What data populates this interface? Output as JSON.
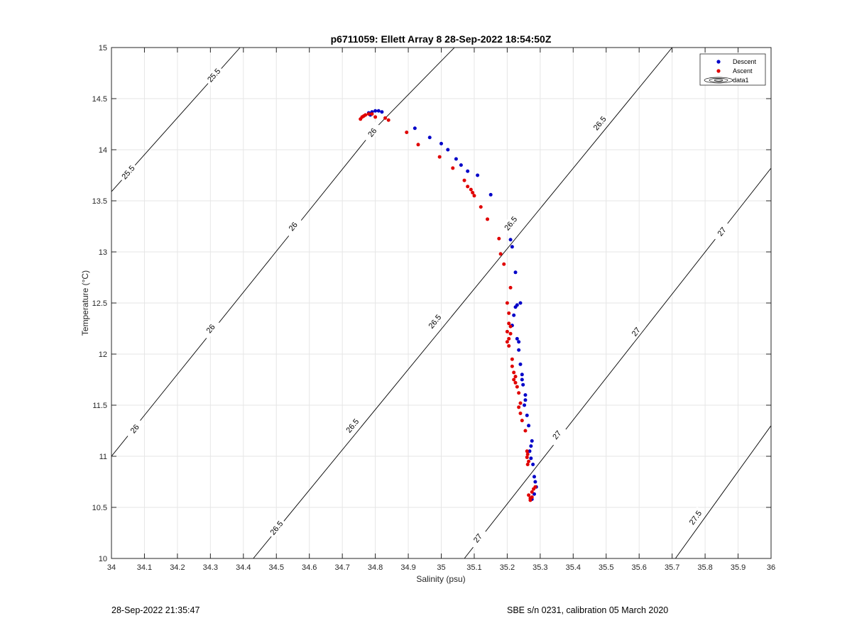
{
  "chart_data": {
    "type": "scatter",
    "title": "p6711059: Ellett Array 8 28-Sep-2022 18:54:50Z",
    "xlabel": "Salinity (psu)",
    "ylabel": "Temperature (°C)",
    "xlim": [
      34,
      36
    ],
    "ylim": [
      10,
      15
    ],
    "xticks": [
      "34",
      "34.1",
      "34.2",
      "34.3",
      "34.4",
      "34.5",
      "34.6",
      "34.7",
      "34.8",
      "34.9",
      "35",
      "35.1",
      "35.2",
      "35.3",
      "35.4",
      "35.5",
      "35.6",
      "35.7",
      "35.8",
      "35.9",
      "36"
    ],
    "yticks": [
      "10",
      "10.5",
      "11",
      "11.5",
      "12",
      "12.5",
      "13",
      "13.5",
      "14",
      "14.5",
      "15"
    ],
    "grid": true,
    "legend_position": "top-right",
    "legend": [
      "Descent",
      "Ascent",
      "data1"
    ],
    "colors": {
      "descent": "#0000c8",
      "ascent": "#e00000",
      "contour": "#000000",
      "grid": "#e6e6e6"
    },
    "contours": [
      {
        "level": "25.5",
        "segments": [
          [
            [
              34,
              13.59
            ],
            [
              34.39,
              15
            ]
          ]
        ],
        "labels": [
          {
            "x": 34.05,
            "y": 13.78
          },
          {
            "x": 34.31,
            "y": 14.73
          }
        ]
      },
      {
        "level": "26",
        "segments": [
          [
            [
              34,
              11.0
            ],
            [
              34.78,
              14.13
            ]
          ],
          [
            [
              34.8,
              14.21
            ],
            [
              35.04,
              15
            ]
          ]
        ],
        "labels": [
          {
            "x": 34.07,
            "y": 11.27
          },
          {
            "x": 34.3,
            "y": 12.25
          },
          {
            "x": 34.55,
            "y": 13.25
          },
          {
            "x": 34.79,
            "y": 14.17
          }
        ]
      },
      {
        "level": "26.5",
        "segments": [
          [
            [
              34.43,
              10
            ],
            [
              35.7,
              15
            ]
          ]
        ],
        "labels": [
          {
            "x": 34.5,
            "y": 10.3
          },
          {
            "x": 34.73,
            "y": 11.3
          },
          {
            "x": 34.98,
            "y": 12.32
          },
          {
            "x": 35.21,
            "y": 13.28
          },
          {
            "x": 35.48,
            "y": 14.26
          }
        ]
      },
      {
        "level": "27",
        "segments": [
          [
            [
              35.07,
              10
            ],
            [
              36,
              13.82
            ]
          ]
        ],
        "labels": [
          {
            "x": 35.11,
            "y": 10.2
          },
          {
            "x": 35.35,
            "y": 11.21
          },
          {
            "x": 35.59,
            "y": 12.22
          },
          {
            "x": 35.85,
            "y": 13.2
          }
        ]
      },
      {
        "level": "27.5",
        "segments": [
          [
            [
              35.71,
              10
            ],
            [
              36,
              11.3
            ]
          ]
        ],
        "labels": [
          {
            "x": 35.77,
            "y": 10.4
          }
        ]
      }
    ],
    "series": [
      {
        "name": "Descent",
        "points": [
          [
            34.78,
            14.36
          ],
          [
            34.79,
            14.37
          ],
          [
            34.8,
            14.38
          ],
          [
            34.81,
            14.38
          ],
          [
            34.82,
            14.37
          ],
          [
            34.785,
            14.34
          ],
          [
            34.92,
            14.21
          ],
          [
            34.965,
            14.12
          ],
          [
            35.0,
            14.06
          ],
          [
            35.02,
            14.0
          ],
          [
            35.045,
            13.91
          ],
          [
            35.06,
            13.85
          ],
          [
            35.08,
            13.79
          ],
          [
            35.11,
            13.75
          ],
          [
            35.15,
            13.56
          ],
          [
            35.21,
            13.12
          ],
          [
            35.215,
            13.05
          ],
          [
            35.225,
            12.8
          ],
          [
            35.23,
            12.48
          ],
          [
            35.225,
            12.46
          ],
          [
            35.24,
            12.5
          ],
          [
            35.22,
            12.38
          ],
          [
            35.215,
            12.28
          ],
          [
            35.23,
            12.15
          ],
          [
            35.235,
            12.12
          ],
          [
            35.235,
            12.04
          ],
          [
            35.24,
            11.9
          ],
          [
            35.245,
            11.8
          ],
          [
            35.245,
            11.75
          ],
          [
            35.248,
            11.7
          ],
          [
            35.255,
            11.6
          ],
          [
            35.255,
            11.55
          ],
          [
            35.252,
            11.5
          ],
          [
            35.26,
            11.4
          ],
          [
            35.265,
            11.3
          ],
          [
            35.275,
            11.15
          ],
          [
            35.272,
            11.1
          ],
          [
            35.268,
            11.05
          ],
          [
            35.272,
            10.98
          ],
          [
            35.278,
            10.92
          ],
          [
            35.282,
            10.8
          ],
          [
            35.285,
            10.75
          ],
          [
            35.288,
            10.7
          ],
          [
            35.282,
            10.63
          ],
          [
            35.275,
            10.58
          ]
        ]
      },
      {
        "name": "Ascent",
        "points": [
          [
            34.755,
            14.3
          ],
          [
            34.76,
            14.32
          ],
          [
            34.765,
            14.33
          ],
          [
            34.77,
            14.34
          ],
          [
            34.78,
            14.35
          ],
          [
            34.79,
            14.35
          ],
          [
            34.8,
            14.32
          ],
          [
            34.83,
            14.31
          ],
          [
            34.84,
            14.29
          ],
          [
            34.895,
            14.17
          ],
          [
            34.93,
            14.05
          ],
          [
            34.995,
            13.93
          ],
          [
            35.035,
            13.82
          ],
          [
            35.07,
            13.7
          ],
          [
            35.08,
            13.64
          ],
          [
            35.09,
            13.61
          ],
          [
            35.095,
            13.58
          ],
          [
            35.1,
            13.55
          ],
          [
            35.12,
            13.44
          ],
          [
            35.14,
            13.32
          ],
          [
            35.175,
            13.13
          ],
          [
            35.18,
            12.98
          ],
          [
            35.19,
            12.88
          ],
          [
            35.21,
            12.65
          ],
          [
            35.2,
            12.5
          ],
          [
            35.205,
            12.4
          ],
          [
            35.205,
            12.3
          ],
          [
            35.21,
            12.27
          ],
          [
            35.2,
            12.22
          ],
          [
            35.21,
            12.2
          ],
          [
            35.205,
            12.15
          ],
          [
            35.2,
            12.12
          ],
          [
            35.205,
            12.08
          ],
          [
            35.215,
            11.95
          ],
          [
            35.215,
            11.88
          ],
          [
            35.22,
            11.82
          ],
          [
            35.225,
            11.78
          ],
          [
            35.22,
            11.75
          ],
          [
            35.225,
            11.72
          ],
          [
            35.23,
            11.68
          ],
          [
            35.235,
            11.62
          ],
          [
            35.24,
            11.52
          ],
          [
            35.235,
            11.48
          ],
          [
            35.24,
            11.42
          ],
          [
            35.245,
            11.35
          ],
          [
            35.255,
            11.25
          ],
          [
            35.26,
            11.05
          ],
          [
            35.262,
            11.02
          ],
          [
            35.26,
            10.99
          ],
          [
            35.265,
            10.95
          ],
          [
            35.262,
            10.92
          ],
          [
            35.265,
            10.62
          ],
          [
            35.27,
            10.59
          ],
          [
            35.275,
            10.6
          ],
          [
            35.275,
            10.65
          ],
          [
            35.28,
            10.68
          ],
          [
            35.285,
            10.7
          ],
          [
            35.27,
            10.57
          ]
        ]
      }
    ]
  },
  "footer": {
    "timestamp": "28-Sep-2022 21:35:47",
    "sensor": "SBE s/n 0231, calibration 05 March 2020"
  }
}
